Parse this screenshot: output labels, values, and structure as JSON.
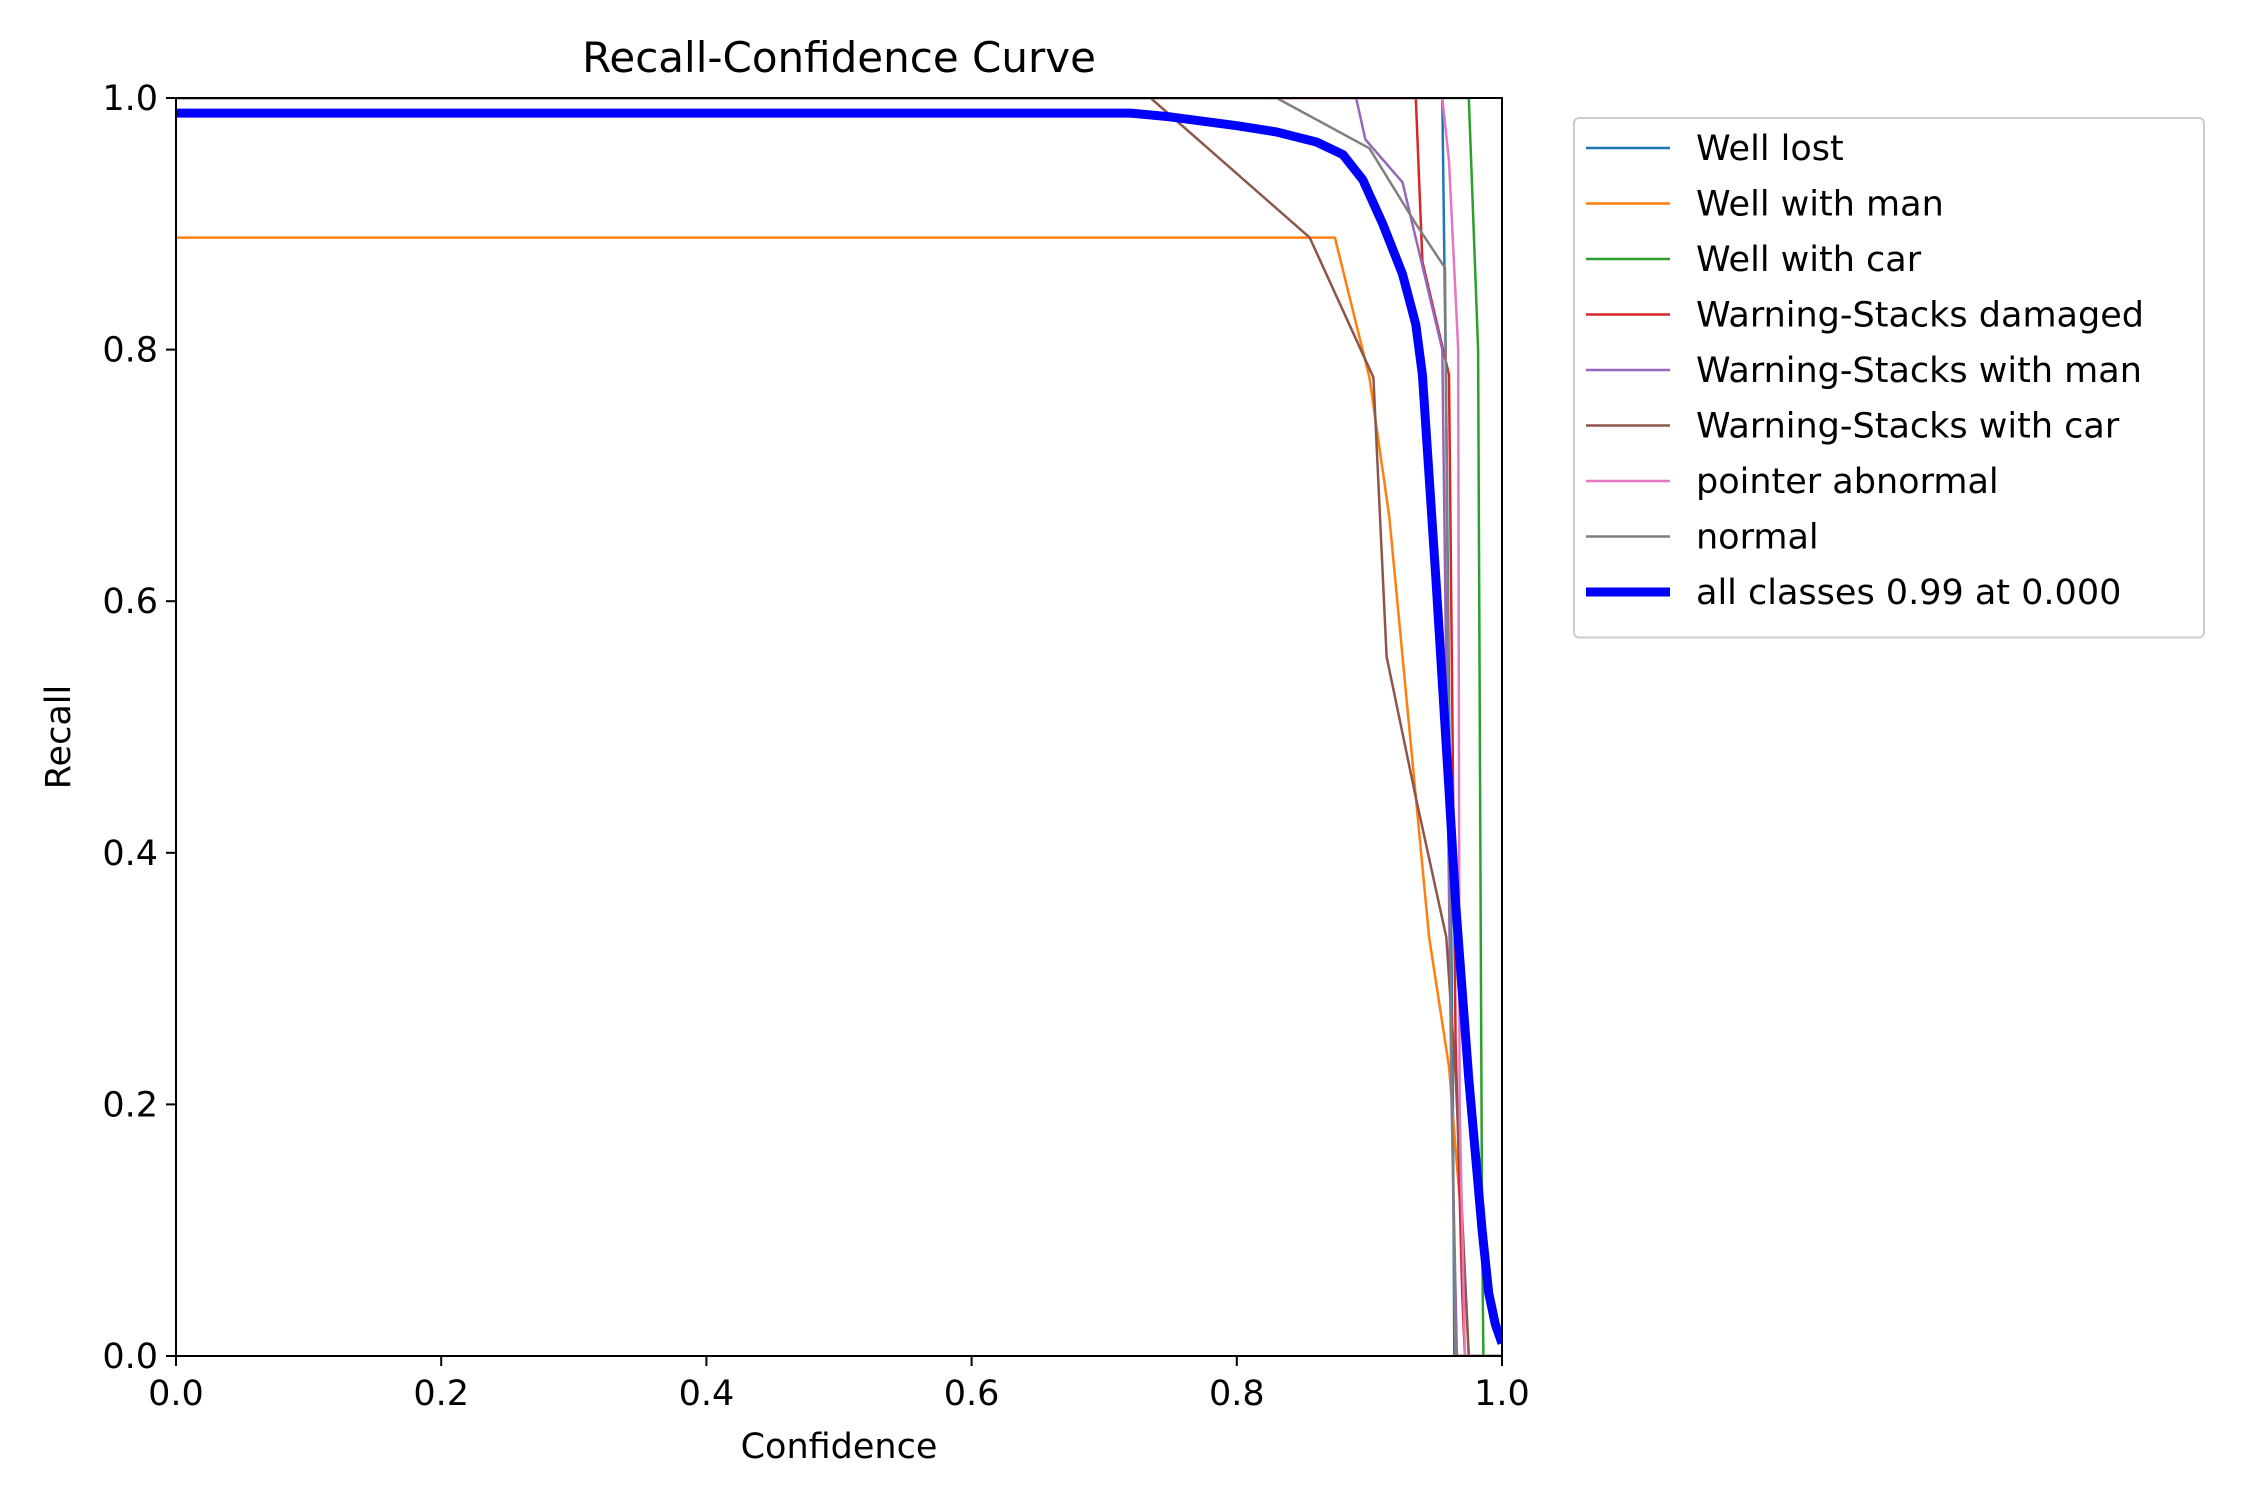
{
  "chart_data": {
    "type": "line",
    "title": "Recall-Confidence Curve",
    "xlabel": "Confidence",
    "ylabel": "Recall",
    "xlim": [
      0,
      1
    ],
    "ylim": [
      0,
      1
    ],
    "xticks": [
      "0.0",
      "0.2",
      "0.4",
      "0.6",
      "0.8",
      "1.0"
    ],
    "yticks": [
      "0.0",
      "0.2",
      "0.4",
      "0.6",
      "0.8",
      "1.0"
    ],
    "grid": false,
    "legend_position": "outside-top-right",
    "series": [
      {
        "name": "Well lost",
        "color": "#1f77b4",
        "bold": false,
        "x": [
          0,
          0.955,
          0.958,
          0.963,
          0.964,
          1.0
        ],
        "y": [
          1.0,
          1.0,
          0.75,
          0.2,
          0.0,
          0.0
        ]
      },
      {
        "name": "Well with man",
        "color": "#ff7f0e",
        "bold": false,
        "x": [
          0,
          0.874,
          0.9,
          0.915,
          0.93,
          0.945,
          0.96,
          0.97,
          0.975,
          1.0
        ],
        "y": [
          0.889,
          0.889,
          0.778,
          0.667,
          0.5,
          0.333,
          0.23,
          0.1,
          0.0,
          0.0
        ]
      },
      {
        "name": "Well with car",
        "color": "#2ca02c",
        "bold": false,
        "x": [
          0,
          0.975,
          0.982,
          0.985,
          0.986,
          1.0
        ],
        "y": [
          1.0,
          1.0,
          0.8,
          0.1,
          0.0,
          0.0
        ]
      },
      {
        "name": "Warning-Stacks damaged",
        "color": "#d62728",
        "bold": false,
        "x": [
          0,
          0.935,
          0.94,
          0.96,
          0.965,
          0.97,
          0.972,
          1.0
        ],
        "y": [
          1.0,
          1.0,
          0.87,
          0.78,
          0.25,
          0.05,
          0.0,
          0.0
        ]
      },
      {
        "name": "Warning-Stacks with man",
        "color": "#9467bd",
        "bold": false,
        "x": [
          0,
          0.89,
          0.897,
          0.925,
          0.955,
          0.962,
          0.966,
          1.0
        ],
        "y": [
          1.0,
          1.0,
          0.967,
          0.933,
          0.8,
          0.2,
          0.0,
          0.0
        ]
      },
      {
        "name": "Warning-Stacks with car",
        "color": "#8c564b",
        "bold": false,
        "x": [
          0,
          0.735,
          0.855,
          0.903,
          0.913,
          0.935,
          0.958,
          0.965,
          0.97,
          0.975,
          1.0
        ],
        "y": [
          1.0,
          1.0,
          0.889,
          0.778,
          0.556,
          0.444,
          0.333,
          0.222,
          0.111,
          0.0,
          0.0
        ]
      },
      {
        "name": "pointer abnormal",
        "color": "#e377c2",
        "bold": false,
        "x": [
          0,
          0.955,
          0.96,
          0.967,
          0.968,
          0.972,
          1.0
        ],
        "y": [
          1.0,
          1.0,
          0.95,
          0.8,
          0.2,
          0.0,
          0.0
        ]
      },
      {
        "name": "normal",
        "color": "#7f7f7f",
        "bold": false,
        "x": [
          0,
          0.83,
          0.9,
          0.935,
          0.957,
          0.962,
          0.965,
          1.0
        ],
        "y": [
          1.0,
          1.0,
          0.96,
          0.9,
          0.865,
          0.22,
          0.0,
          0.0
        ]
      },
      {
        "name": "all classes 0.99 at 0.000",
        "color": "#0000ff",
        "bold": true,
        "x": [
          0,
          0.72,
          0.75,
          0.8,
          0.83,
          0.86,
          0.88,
          0.895,
          0.91,
          0.925,
          0.935,
          0.94,
          0.95,
          0.96,
          0.965,
          0.975,
          0.985,
          0.99,
          0.995,
          1.0
        ],
        "y": [
          0.988,
          0.988,
          0.985,
          0.978,
          0.973,
          0.965,
          0.955,
          0.935,
          0.9,
          0.86,
          0.82,
          0.78,
          0.62,
          0.45,
          0.36,
          0.22,
          0.1,
          0.05,
          0.025,
          0.01
        ]
      }
    ]
  }
}
